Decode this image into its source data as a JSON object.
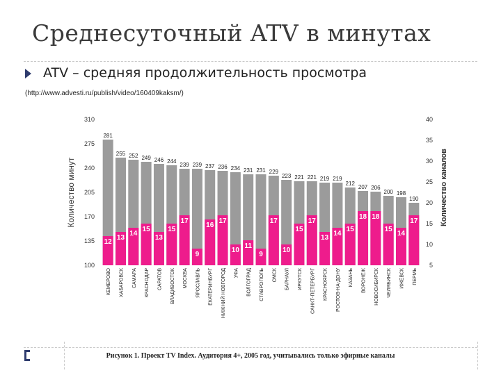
{
  "page": {
    "title": "Среднесуточный ATV в минутах",
    "subtitle": "ATV – средняя продолжительность просмотра",
    "url": "(http://www.advesti.ru/publish/video/160409kaksm/)",
    "caption": "Рисунок 1. Проект TV Index. Аудитория 4+, 2005 год, учитывались только эфирные каналы"
  },
  "colors": {
    "gray_bar": "#9b9b9b",
    "pink_bar": "#ee1c8c",
    "bullet": "#2f3c6e"
  },
  "chart_data": {
    "type": "bar",
    "categories": [
      "КЕМЕРОВО",
      "ХАБАРОВСК",
      "САМАРА",
      "КРАСНОДАР",
      "САРАТОВ",
      "ВЛАДИВОСТОК",
      "МОСКВА",
      "ЯРОСЛАВЛЬ",
      "ЕКАТЕРИНБУРГ",
      "НИЖНИЙ НОВГОРОД",
      "УФА",
      "ВОЛГОГРАД",
      "СТАВРОПОЛЬ",
      "ОМСК",
      "БАРНАУЛ",
      "ИРКУТСК",
      "САНКТ-ПЕТЕРБУРГ",
      "КРАСНОЯРСК",
      "РОСТОВ-НА-ДОНУ",
      "КАЗАНЬ",
      "ВОРОНЕЖ",
      "НОВОСИБИРСК",
      "ЧЕЛЯБИНСК",
      "ИЖЕВСК",
      "ПЕРМЬ"
    ],
    "series": [
      {
        "axis": "left",
        "values": [
          281,
          255,
          252,
          249,
          246,
          244,
          239,
          239,
          237,
          236,
          234,
          231,
          231,
          229,
          223,
          221,
          221,
          219,
          219,
          212,
          207,
          206,
          200,
          198,
          190
        ]
      },
      {
        "axis": "right",
        "values": [
          12,
          13,
          14,
          15,
          13,
          15,
          17,
          9,
          16,
          17,
          10,
          11,
          9,
          17,
          10,
          15,
          17,
          13,
          14,
          15,
          18,
          18,
          15,
          14,
          17
        ]
      }
    ],
    "y_left": {
      "label": "Количество минут",
      "ticks": [
        100,
        135,
        170,
        205,
        240,
        275,
        310
      ],
      "ylim": [
        100,
        310
      ]
    },
    "y_right": {
      "label": "Количество каналов",
      "ticks": [
        5,
        10,
        15,
        20,
        25,
        30,
        35,
        40
      ],
      "ylim": [
        5,
        40
      ]
    }
  }
}
